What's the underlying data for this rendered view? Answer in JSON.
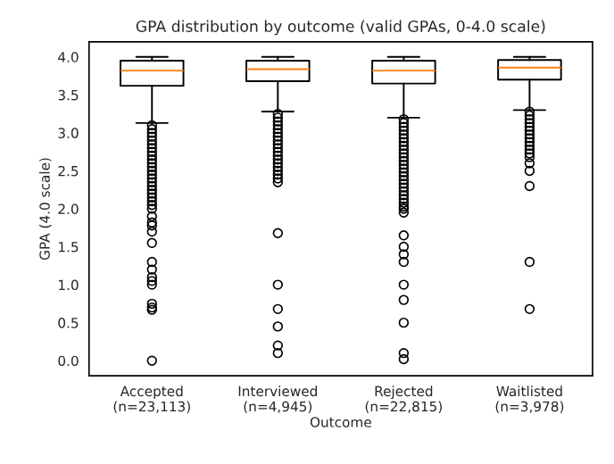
{
  "chart_data": {
    "type": "box",
    "title": "GPA distribution by outcome (valid GPAs, 0-4.0 scale)",
    "xlabel": "Outcome",
    "ylabel": "GPA (4.0 scale)",
    "categories": [
      "Accepted\n(n=23,113)",
      "Interviewed\n(n=4,945)",
      "Rejected\n(n=22,815)",
      "Waitlisted\n(n=3,978)"
    ],
    "boxes": [
      {
        "low": 3.13,
        "q1": 3.62,
        "median": 3.82,
        "q3": 3.95,
        "high": 4.0,
        "outliers": [
          3.1,
          3.05,
          3.0,
          2.95,
          2.9,
          2.85,
          2.8,
          2.75,
          2.7,
          2.65,
          2.6,
          2.55,
          2.5,
          2.45,
          2.4,
          2.35,
          2.3,
          2.25,
          2.2,
          2.15,
          2.1,
          2.05,
          2.0,
          1.9,
          1.82,
          1.78,
          1.7,
          1.55,
          1.3,
          1.2,
          1.1,
          1.05,
          1.0,
          0.75,
          0.7,
          0.67,
          0.0
        ]
      },
      {
        "low": 3.28,
        "q1": 3.68,
        "median": 3.84,
        "q3": 3.95,
        "high": 4.0,
        "outliers": [
          3.25,
          3.2,
          3.15,
          3.1,
          3.05,
          3.0,
          2.95,
          2.9,
          2.85,
          2.8,
          2.75,
          2.7,
          2.65,
          2.6,
          2.55,
          2.5,
          2.45,
          2.4,
          2.35,
          1.68,
          1.0,
          0.68,
          0.45,
          0.2,
          0.1
        ]
      },
      {
        "low": 3.2,
        "q1": 3.65,
        "median": 3.82,
        "q3": 3.95,
        "high": 4.0,
        "outliers": [
          3.18,
          3.13,
          3.08,
          3.03,
          2.98,
          2.93,
          2.88,
          2.83,
          2.78,
          2.73,
          2.68,
          2.63,
          2.58,
          2.53,
          2.48,
          2.43,
          2.38,
          2.33,
          2.28,
          2.23,
          2.18,
          2.13,
          2.08,
          2.03,
          2.0,
          1.95,
          1.65,
          1.5,
          1.4,
          1.3,
          1.0,
          0.8,
          0.5,
          0.1,
          0.02
        ]
      },
      {
        "low": 3.3,
        "q1": 3.7,
        "median": 3.86,
        "q3": 3.96,
        "high": 4.0,
        "outliers": [
          3.28,
          3.23,
          3.18,
          3.13,
          3.08,
          3.03,
          2.98,
          2.93,
          2.88,
          2.83,
          2.78,
          2.73,
          2.68,
          2.6,
          2.5,
          2.3,
          1.3,
          0.68
        ]
      }
    ],
    "ylim": [
      -0.2,
      4.2
    ],
    "yticks": [
      {
        "value": 0,
        "label": "0.0"
      },
      0.5,
      {
        "value": 1,
        "label": "1.0"
      },
      1.5,
      {
        "value": 2,
        "label": "2.0"
      },
      2.5,
      {
        "value": 3,
        "label": "3.0"
      },
      3.5,
      {
        "value": 4,
        "label": "4.0"
      }
    ],
    "grid": false
  }
}
